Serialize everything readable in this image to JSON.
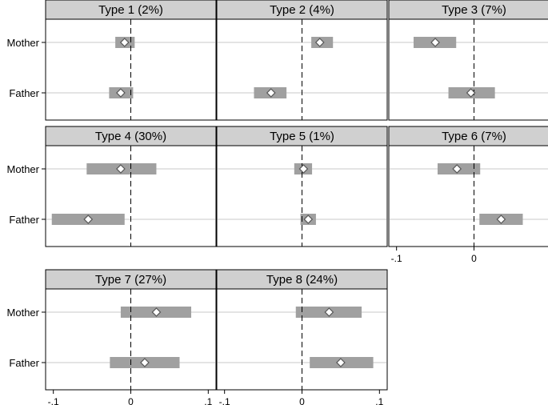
{
  "chart_data": {
    "type": "forest",
    "row_labels": [
      "Mother",
      "Father"
    ],
    "x_ticks": [
      {
        "value": -0.1,
        "label": "-.1"
      },
      {
        "value": 0,
        "label": "0"
      },
      {
        "value": 0.1,
        "label": ".1"
      }
    ],
    "xlim": [
      -0.11,
      0.11
    ],
    "reference_line": 0,
    "grid": "horizontal",
    "colors": {
      "ci_bar": "#a0a0a0",
      "header_bg": "#d0d0d0",
      "marker_fill": "#ffffff",
      "grid": "#dcdcdc"
    },
    "panels": [
      {
        "title": "Type 1 (2%)",
        "estimates": [
          {
            "row": "Mother",
            "point": -0.008,
            "lo": -0.02,
            "hi": 0.005
          },
          {
            "row": "Father",
            "point": -0.013,
            "lo": -0.028,
            "hi": 0.003
          }
        ]
      },
      {
        "title": "Type 2 (4%)",
        "estimates": [
          {
            "row": "Mother",
            "point": 0.023,
            "lo": 0.012,
            "hi": 0.04
          },
          {
            "row": "Father",
            "point": -0.04,
            "lo": -0.062,
            "hi": -0.02
          }
        ]
      },
      {
        "title": "Type 3 (7%)",
        "estimates": [
          {
            "row": "Mother",
            "point": -0.05,
            "lo": -0.078,
            "hi": -0.023
          },
          {
            "row": "Father",
            "point": -0.004,
            "lo": -0.033,
            "hi": 0.027
          }
        ]
      },
      {
        "title": "Type 4 (30%)",
        "estimates": [
          {
            "row": "Mother",
            "point": -0.013,
            "lo": -0.057,
            "hi": 0.033
          },
          {
            "row": "Father",
            "point": -0.055,
            "lo": -0.102,
            "hi": -0.008
          }
        ]
      },
      {
        "title": "Type 5 (1%)",
        "estimates": [
          {
            "row": "Mother",
            "point": 0.002,
            "lo": -0.01,
            "hi": 0.013
          },
          {
            "row": "Father",
            "point": 0.008,
            "lo": -0.002,
            "hi": 0.018
          }
        ]
      },
      {
        "title": "Type 6 (7%)",
        "estimates": [
          {
            "row": "Mother",
            "point": -0.022,
            "lo": -0.047,
            "hi": 0.008
          },
          {
            "row": "Father",
            "point": 0.035,
            "lo": 0.007,
            "hi": 0.063
          }
        ]
      },
      {
        "title": "Type 7 (27%)",
        "estimates": [
          {
            "row": "Mother",
            "point": 0.033,
            "lo": -0.013,
            "hi": 0.078
          },
          {
            "row": "Father",
            "point": 0.018,
            "lo": -0.027,
            "hi": 0.063
          }
        ]
      },
      {
        "title": "Type 8 (24%)",
        "estimates": [
          {
            "row": "Mother",
            "point": 0.035,
            "lo": -0.008,
            "hi": 0.077
          },
          {
            "row": "Father",
            "point": 0.05,
            "lo": 0.01,
            "hi": 0.092
          }
        ]
      }
    ]
  }
}
